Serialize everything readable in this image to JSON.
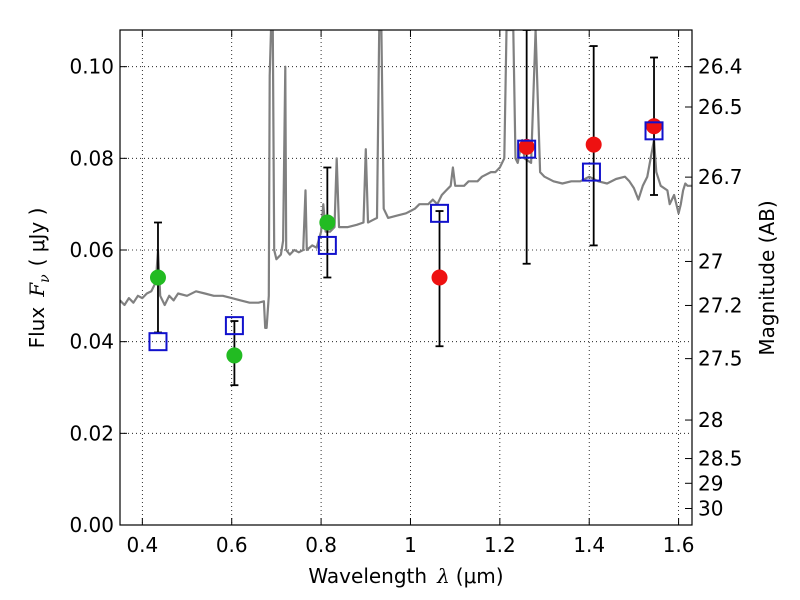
{
  "chart_data": {
    "type": "scatter",
    "xlabel_text": "Wavelength",
    "xlabel_symbol": "λ",
    "xlabel_unit": "(μm)",
    "ylabel_prefix": "Flux",
    "ylabel_symbol": "F",
    "ylabel_subscript": "ν",
    "ylabel_unit": "( μJy )",
    "y2label": "Magnitude (AB)",
    "xlim": [
      0.35,
      1.63
    ],
    "ylim": [
      0.0,
      0.108
    ],
    "grid": true,
    "x_ticks": [
      0.4,
      0.6,
      0.8,
      1.0,
      1.2,
      1.4,
      1.6
    ],
    "x_tick_labels": [
      "0.4",
      "0.6",
      "0.8",
      "1",
      "1.2",
      "1.4",
      "1.6"
    ],
    "y_ticks": [
      0.0,
      0.02,
      0.04,
      0.06,
      0.08,
      0.1
    ],
    "y_tick_labels": [
      "0.00",
      "0.02",
      "0.04",
      "0.06",
      "0.08",
      "0.10"
    ],
    "y2_ticks": [
      {
        "label": "26.4",
        "flux": 0.1
      },
      {
        "label": "26.5",
        "flux": 0.0912
      },
      {
        "label": "26.7",
        "flux": 0.0759
      },
      {
        "label": "27",
        "flux": 0.0575
      },
      {
        "label": "27.2",
        "flux": 0.0479
      },
      {
        "label": "27.5",
        "flux": 0.0363
      },
      {
        "label": "28",
        "flux": 0.0229
      },
      {
        "label": "28.5",
        "flux": 0.0145
      },
      {
        "label": "29",
        "flux": 0.0091
      },
      {
        "label": "30",
        "flux": 0.0036
      }
    ],
    "series": [
      {
        "marker": "circle",
        "color": "#22bb22",
        "points": [
          {
            "x": 0.435,
            "y": 0.054,
            "yerr_low": 0.042,
            "yerr_high": 0.066
          },
          {
            "x": 0.606,
            "y": 0.037,
            "yerr_low": 0.0305,
            "yerr_high": 0.0445
          },
          {
            "x": 0.814,
            "y": 0.066,
            "yerr_low": 0.054,
            "yerr_high": 0.078
          }
        ]
      },
      {
        "marker": "circle",
        "color": "#ee1111",
        "points": [
          {
            "x": 1.065,
            "y": 0.054,
            "yerr_low": 0.039,
            "yerr_high": 0.0685
          },
          {
            "x": 1.26,
            "y": 0.0825,
            "yerr_low": 0.057,
            "yerr_high": 0.108
          },
          {
            "x": 1.41,
            "y": 0.083,
            "yerr_low": 0.061,
            "yerr_high": 0.1045
          },
          {
            "x": 1.545,
            "y": 0.087,
            "yerr_low": 0.072,
            "yerr_high": 0.102
          }
        ]
      },
      {
        "marker": "open-square",
        "color": "#1111cc",
        "points": [
          {
            "x": 0.435,
            "y": 0.04
          },
          {
            "x": 0.606,
            "y": 0.0435
          },
          {
            "x": 0.814,
            "y": 0.061
          },
          {
            "x": 1.065,
            "y": 0.068
          },
          {
            "x": 1.26,
            "y": 0.082
          },
          {
            "x": 1.405,
            "y": 0.077
          },
          {
            "x": 1.545,
            "y": 0.086
          }
        ]
      }
    ],
    "spectrum": {
      "color": "#808080",
      "points": [
        [
          0.35,
          0.049
        ],
        [
          0.36,
          0.048
        ],
        [
          0.37,
          0.0495
        ],
        [
          0.38,
          0.0485
        ],
        [
          0.39,
          0.05
        ],
        [
          0.4,
          0.0495
        ],
        [
          0.41,
          0.0505
        ],
        [
          0.42,
          0.051
        ],
        [
          0.43,
          0.053
        ],
        [
          0.435,
          0.06
        ],
        [
          0.44,
          0.05
        ],
        [
          0.45,
          0.048
        ],
        [
          0.46,
          0.05
        ],
        [
          0.47,
          0.049
        ],
        [
          0.48,
          0.0505
        ],
        [
          0.5,
          0.05
        ],
        [
          0.52,
          0.051
        ],
        [
          0.54,
          0.0505
        ],
        [
          0.56,
          0.05
        ],
        [
          0.58,
          0.05
        ],
        [
          0.6,
          0.0495
        ],
        [
          0.62,
          0.049
        ],
        [
          0.64,
          0.0485
        ],
        [
          0.66,
          0.0485
        ],
        [
          0.672,
          0.0488
        ],
        [
          0.675,
          0.043
        ],
        [
          0.678,
          0.043
        ],
        [
          0.683,
          0.05
        ],
        [
          0.685,
          0.098
        ],
        [
          0.688,
          0.108
        ],
        [
          0.692,
          0.108
        ],
        [
          0.695,
          0.06
        ],
        [
          0.7,
          0.058
        ],
        [
          0.71,
          0.059
        ],
        [
          0.715,
          0.062
        ],
        [
          0.72,
          0.1
        ],
        [
          0.722,
          0.06
        ],
        [
          0.73,
          0.059
        ],
        [
          0.74,
          0.06
        ],
        [
          0.75,
          0.0595
        ],
        [
          0.76,
          0.06
        ],
        [
          0.765,
          0.073
        ],
        [
          0.768,
          0.06
        ],
        [
          0.78,
          0.061
        ],
        [
          0.79,
          0.0605
        ],
        [
          0.8,
          0.064
        ],
        [
          0.805,
          0.07
        ],
        [
          0.81,
          0.064
        ],
        [
          0.82,
          0.064
        ],
        [
          0.83,
          0.065
        ],
        [
          0.835,
          0.08
        ],
        [
          0.84,
          0.065
        ],
        [
          0.86,
          0.065
        ],
        [
          0.88,
          0.0655
        ],
        [
          0.895,
          0.066
        ],
        [
          0.9,
          0.082
        ],
        [
          0.905,
          0.066
        ],
        [
          0.915,
          0.0665
        ],
        [
          0.925,
          0.067
        ],
        [
          0.93,
          0.108
        ],
        [
          0.935,
          0.108
        ],
        [
          0.94,
          0.069
        ],
        [
          0.95,
          0.067
        ],
        [
          0.97,
          0.0675
        ],
        [
          0.99,
          0.068
        ],
        [
          1.0,
          0.0685
        ],
        [
          1.01,
          0.069
        ],
        [
          1.02,
          0.07
        ],
        [
          1.04,
          0.07
        ],
        [
          1.05,
          0.071
        ],
        [
          1.06,
          0.07
        ],
        [
          1.07,
          0.072
        ],
        [
          1.08,
          0.073
        ],
        [
          1.09,
          0.074
        ],
        [
          1.095,
          0.078
        ],
        [
          1.1,
          0.074
        ],
        [
          1.12,
          0.074
        ],
        [
          1.13,
          0.075
        ],
        [
          1.15,
          0.075
        ],
        [
          1.16,
          0.076
        ],
        [
          1.18,
          0.077
        ],
        [
          1.19,
          0.077
        ],
        [
          1.2,
          0.078
        ],
        [
          1.21,
          0.08
        ],
        [
          1.215,
          0.108
        ],
        [
          1.23,
          0.108
        ],
        [
          1.235,
          0.08
        ],
        [
          1.24,
          0.079
        ],
        [
          1.25,
          0.084
        ],
        [
          1.255,
          0.08
        ],
        [
          1.27,
          0.079
        ],
        [
          1.28,
          0.108
        ],
        [
          1.29,
          0.077
        ],
        [
          1.3,
          0.076
        ],
        [
          1.32,
          0.075
        ],
        [
          1.34,
          0.0745
        ],
        [
          1.36,
          0.075
        ],
        [
          1.38,
          0.075
        ],
        [
          1.4,
          0.076
        ],
        [
          1.42,
          0.075
        ],
        [
          1.44,
          0.0745
        ],
        [
          1.46,
          0.0755
        ],
        [
          1.48,
          0.076
        ],
        [
          1.49,
          0.075
        ],
        [
          1.5,
          0.0735
        ],
        [
          1.51,
          0.071
        ],
        [
          1.52,
          0.074
        ],
        [
          1.53,
          0.076
        ],
        [
          1.545,
          0.084
        ],
        [
          1.55,
          0.077
        ],
        [
          1.56,
          0.074
        ],
        [
          1.575,
          0.073
        ],
        [
          1.58,
          0.07
        ],
        [
          1.59,
          0.072
        ],
        [
          1.6,
          0.068
        ],
        [
          1.605,
          0.07
        ],
        [
          1.61,
          0.073
        ],
        [
          1.615,
          0.0745
        ],
        [
          1.62,
          0.074
        ],
        [
          1.63,
          0.074
        ]
      ]
    }
  }
}
